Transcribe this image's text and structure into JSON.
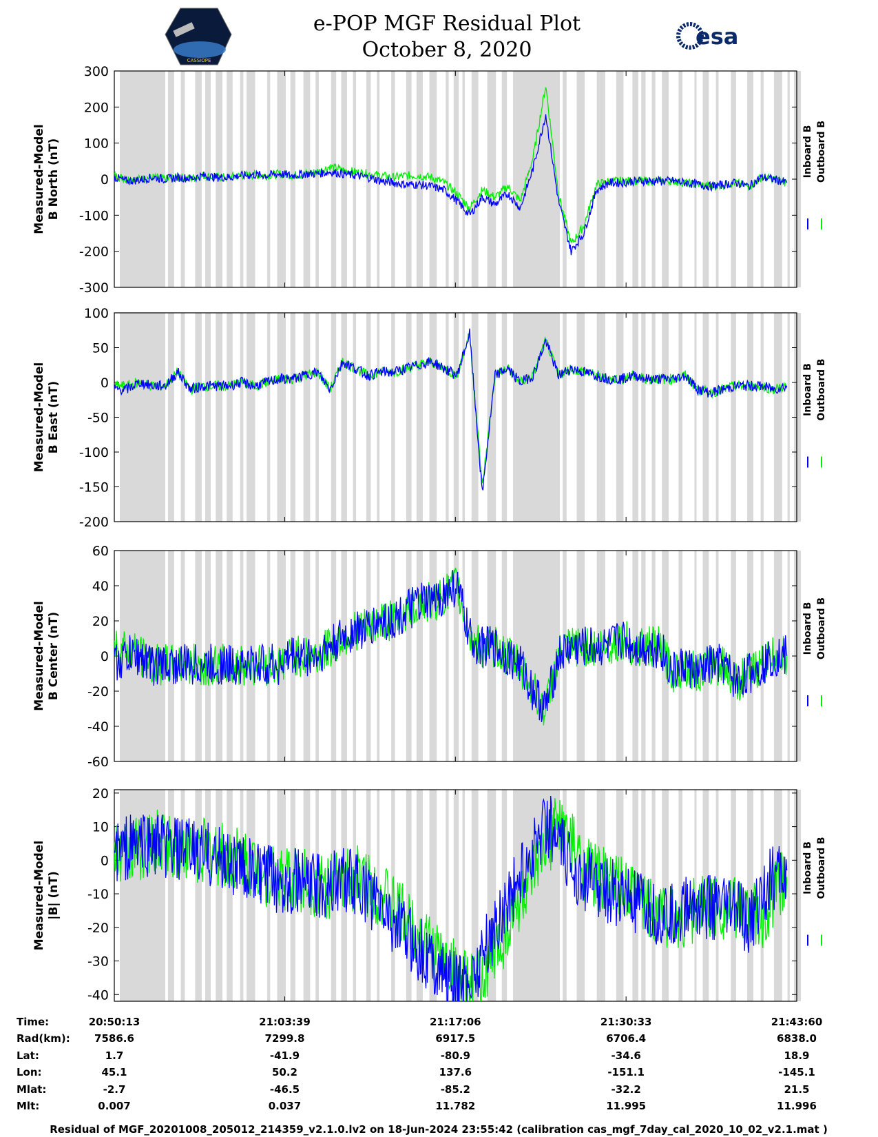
{
  "header": {
    "title_line1": "e-POP MGF Residual Plot",
    "title_line2": "October 8, 2020",
    "left_logo": "cassiope-mission-logo",
    "left_logo_text": "CASSIOPE",
    "right_logo": "esa-logo",
    "right_logo_text": "esa"
  },
  "colors": {
    "inboard": "#0000ff",
    "outboard": "#00ee00",
    "gap_shade": "#d9d9d9"
  },
  "chart_data": [
    {
      "type": "line",
      "ylabel_line1": "Measured-Model",
      "ylabel_line2": "B North (nT)",
      "ylim": [
        -300,
        300
      ],
      "yticks": [
        "300",
        "200",
        "100",
        "0",
        "-100",
        "-200",
        "-300"
      ],
      "series": [
        {
          "name": "Inboard B",
          "x_min": [
            0,
            1,
            2,
            3,
            4,
            5,
            6,
            7,
            8,
            9,
            10,
            11,
            12,
            13,
            14,
            15,
            16,
            17,
            18,
            19,
            20,
            21,
            22,
            23,
            24,
            25,
            26,
            27,
            28,
            29,
            30,
            31,
            32,
            33,
            34,
            35,
            36,
            37,
            38,
            39,
            40,
            41,
            42,
            43,
            44,
            45,
            46,
            47,
            48,
            49,
            50,
            51,
            52,
            53
          ],
          "values": [
            5,
            -5,
            -2,
            5,
            0,
            5,
            2,
            10,
            5,
            5,
            10,
            12,
            10,
            15,
            10,
            15,
            15,
            20,
            15,
            10,
            5,
            -5,
            -10,
            -15,
            -15,
            -20,
            -30,
            -60,
            -100,
            -50,
            -70,
            -40,
            -80,
            30,
            180,
            -60,
            -200,
            -150,
            -30,
            -10,
            -10,
            -5,
            -5,
            -5,
            -5,
            -10,
            -15,
            -20,
            -15,
            -10,
            -20,
            5,
            0,
            -10
          ]
        },
        {
          "name": "Outboard B",
          "x_min": [
            0,
            1,
            2,
            3,
            4,
            5,
            6,
            7,
            8,
            9,
            10,
            11,
            12,
            13,
            14,
            15,
            16,
            17,
            18,
            19,
            20,
            21,
            22,
            23,
            24,
            25,
            26,
            27,
            28,
            29,
            30,
            31,
            32,
            33,
            34,
            35,
            36,
            37,
            38,
            39,
            40,
            41,
            42,
            43,
            44,
            45,
            46,
            47,
            48,
            49,
            50,
            51,
            52,
            53
          ],
          "values": [
            10,
            0,
            0,
            5,
            0,
            5,
            2,
            10,
            5,
            5,
            10,
            12,
            10,
            15,
            10,
            15,
            20,
            35,
            25,
            20,
            15,
            10,
            5,
            10,
            10,
            5,
            -10,
            -40,
            -80,
            -30,
            -50,
            -20,
            -60,
            60,
            260,
            -40,
            -180,
            -130,
            -15,
            -5,
            -5,
            -5,
            -5,
            -5,
            -5,
            -10,
            -15,
            -20,
            -15,
            -10,
            -20,
            5,
            0,
            -10
          ]
        }
      ]
    },
    {
      "type": "line",
      "ylabel_line1": "Measured-Model",
      "ylabel_line2": "B East (nT)",
      "ylim": [
        -200,
        100
      ],
      "yticks": [
        "100",
        "50",
        "0",
        "-50",
        "-100",
        "-150",
        "-200"
      ],
      "series": [
        {
          "name": "Inboard B",
          "x_min": [
            0,
            1,
            2,
            3,
            4,
            5,
            6,
            7,
            8,
            9,
            10,
            11,
            12,
            13,
            14,
            15,
            16,
            17,
            18,
            19,
            20,
            21,
            22,
            23,
            24,
            25,
            26,
            27,
            28,
            29,
            30,
            31,
            32,
            33,
            34,
            35,
            36,
            37,
            38,
            39,
            40,
            41,
            42,
            43,
            44,
            45,
            46,
            47,
            48,
            49,
            50,
            51,
            52,
            53
          ],
          "values": [
            -10,
            -10,
            0,
            -5,
            -5,
            15,
            -10,
            -5,
            -5,
            -5,
            0,
            -5,
            0,
            5,
            5,
            10,
            15,
            -10,
            30,
            20,
            10,
            15,
            15,
            20,
            25,
            30,
            20,
            10,
            70,
            -160,
            10,
            20,
            0,
            10,
            60,
            10,
            20,
            15,
            10,
            5,
            5,
            10,
            5,
            5,
            5,
            10,
            -10,
            -15,
            -10,
            -5,
            -5,
            -5,
            -10,
            -5
          ]
        },
        {
          "name": "Outboard B",
          "x_min": [
            0,
            1,
            2,
            3,
            4,
            5,
            6,
            7,
            8,
            9,
            10,
            11,
            12,
            13,
            14,
            15,
            16,
            17,
            18,
            19,
            20,
            21,
            22,
            23,
            24,
            25,
            26,
            27,
            28,
            29,
            30,
            31,
            32,
            33,
            34,
            35,
            36,
            37,
            38,
            39,
            40,
            41,
            42,
            43,
            44,
            45,
            46,
            47,
            48,
            49,
            50,
            51,
            52,
            53
          ],
          "values": [
            -5,
            -5,
            0,
            -5,
            -5,
            15,
            -10,
            -5,
            -5,
            -5,
            0,
            -5,
            0,
            5,
            5,
            10,
            15,
            -10,
            30,
            20,
            10,
            15,
            15,
            20,
            25,
            30,
            20,
            10,
            70,
            -150,
            10,
            20,
            0,
            10,
            60,
            10,
            20,
            15,
            10,
            5,
            5,
            10,
            5,
            5,
            5,
            10,
            -10,
            -15,
            -10,
            -5,
            -5,
            -5,
            -10,
            -5
          ]
        }
      ]
    },
    {
      "type": "line",
      "ylabel_line1": "Measured-Model",
      "ylabel_line2": "B Center (nT)",
      "ylim": [
        -60,
        60
      ],
      "yticks": [
        "60",
        "40",
        "20",
        "0",
        "-20",
        "-40",
        "-60"
      ],
      "series": [
        {
          "name": "Inboard B",
          "x_min": [
            0,
            1,
            2,
            3,
            4,
            5,
            6,
            7,
            8,
            9,
            10,
            11,
            12,
            13,
            14,
            15,
            16,
            17,
            18,
            19,
            20,
            21,
            22,
            23,
            24,
            25,
            26,
            27,
            28,
            29,
            30,
            31,
            32,
            33,
            34,
            35,
            36,
            37,
            38,
            39,
            40,
            41,
            42,
            43,
            44,
            45,
            46,
            47,
            48,
            49,
            50,
            51,
            52,
            53
          ],
          "values": [
            -5,
            0,
            0,
            -5,
            -5,
            -5,
            -5,
            -5,
            -5,
            -5,
            -5,
            -5,
            -5,
            -5,
            0,
            0,
            0,
            5,
            10,
            15,
            15,
            20,
            20,
            25,
            30,
            30,
            35,
            40,
            10,
            5,
            5,
            0,
            -5,
            -20,
            -30,
            0,
            5,
            5,
            5,
            5,
            10,
            5,
            5,
            5,
            -10,
            -5,
            -10,
            -5,
            -5,
            -15,
            -10,
            -5,
            0,
            0
          ]
        },
        {
          "name": "Outboard B",
          "x_min": [
            0,
            1,
            2,
            3,
            4,
            5,
            6,
            7,
            8,
            9,
            10,
            11,
            12,
            13,
            14,
            15,
            16,
            17,
            18,
            19,
            20,
            21,
            22,
            23,
            24,
            25,
            26,
            27,
            28,
            29,
            30,
            31,
            32,
            33,
            34,
            35,
            36,
            37,
            38,
            39,
            40,
            41,
            42,
            43,
            44,
            45,
            46,
            47,
            48,
            49,
            50,
            51,
            52,
            53
          ],
          "values": [
            5,
            5,
            0,
            -5,
            -5,
            -5,
            -5,
            -5,
            -5,
            -5,
            -5,
            -5,
            -5,
            -5,
            0,
            0,
            0,
            5,
            10,
            15,
            15,
            20,
            20,
            25,
            30,
            30,
            35,
            40,
            10,
            5,
            5,
            0,
            -5,
            -20,
            -30,
            0,
            5,
            5,
            5,
            5,
            10,
            5,
            5,
            5,
            -10,
            -5,
            -10,
            -5,
            -5,
            -15,
            -10,
            -5,
            0,
            0
          ]
        }
      ]
    },
    {
      "type": "line",
      "ylabel_line1": "Measured-Model",
      "ylabel_line2": "|B| (nT)",
      "ylim": [
        -42,
        21
      ],
      "yticks": [
        "20",
        "10",
        "0",
        "-10",
        "-20",
        "-30",
        "-40"
      ],
      "series": [
        {
          "name": "Inboard B",
          "x_min": [
            0,
            1,
            2,
            3,
            4,
            5,
            6,
            7,
            8,
            9,
            10,
            11,
            12,
            13,
            14,
            15,
            16,
            17,
            18,
            19,
            20,
            21,
            22,
            23,
            24,
            25,
            26,
            27,
            28,
            29,
            30,
            31,
            32,
            33,
            34,
            35,
            36,
            37,
            38,
            39,
            40,
            41,
            42,
            43,
            44,
            45,
            46,
            47,
            48,
            49,
            50,
            51,
            52,
            53
          ],
          "values": [
            2,
            4,
            5,
            5,
            4,
            3,
            3,
            2,
            1,
            0,
            -2,
            -4,
            -5,
            -6,
            -6,
            -7,
            -8,
            -7,
            -5,
            -7,
            -10,
            -14,
            -18,
            -22,
            -26,
            -30,
            -34,
            -38,
            -36,
            -28,
            -20,
            -12,
            -5,
            3,
            12,
            5,
            -2,
            -5,
            -7,
            -9,
            -11,
            -13,
            -15,
            -17,
            -17,
            -14,
            -13,
            -14,
            -15,
            -14,
            -20,
            -10,
            -5,
            -3
          ]
        },
        {
          "name": "Outboard B",
          "x_min": [
            0,
            1,
            2,
            3,
            4,
            5,
            6,
            7,
            8,
            9,
            10,
            11,
            12,
            13,
            14,
            15,
            16,
            17,
            18,
            19,
            20,
            21,
            22,
            23,
            24,
            25,
            26,
            27,
            28,
            29,
            30,
            31,
            32,
            33,
            34,
            35,
            36,
            37,
            38,
            39,
            40,
            41,
            42,
            43,
            44,
            45,
            46,
            47,
            48,
            49,
            50,
            51,
            52,
            53
          ],
          "values": [
            2,
            2,
            4,
            5,
            5,
            4,
            3,
            3,
            2,
            1,
            0,
            -2,
            -4,
            -5,
            -6,
            -6,
            -7,
            -8,
            -7,
            -5,
            -7,
            -10,
            -14,
            -18,
            -22,
            -26,
            -30,
            -34,
            -38,
            -36,
            -28,
            -20,
            -12,
            -5,
            3,
            12,
            5,
            -2,
            -5,
            -7,
            -9,
            -11,
            -13,
            -15,
            -17,
            -17,
            -14,
            -13,
            -14,
            -15,
            -14,
            -20,
            -10,
            -5
          ]
        }
      ]
    }
  ],
  "legend": {
    "inboard": "Inboard B",
    "outboard": "Outboard B"
  },
  "x_axis": {
    "range_min": [
      0,
      53.78
    ],
    "tick_positions_min": [
      0,
      13.43,
      26.88,
      40.33,
      53.78
    ]
  },
  "info_table": {
    "labels": [
      "Time:",
      "Rad(km):",
      "Lat:",
      "Lon:",
      "Mlat:",
      "Mlt:"
    ],
    "columns": [
      [
        "20:50:13",
        "7586.6",
        "1.7",
        "45.1",
        "-2.7",
        "0.007"
      ],
      [
        "21:03:39",
        "7299.8",
        "-41.9",
        "50.2",
        "-46.5",
        "0.037"
      ],
      [
        "21:17:06",
        "6917.5",
        "-80.9",
        "137.6",
        "-85.2",
        "11.782"
      ],
      [
        "21:30:33",
        "6706.4",
        "-34.6",
        "-151.1",
        "-32.2",
        "11.995"
      ],
      [
        "21:43:60",
        "6838.0",
        "18.9",
        "-145.1",
        "21.5",
        "11.996"
      ]
    ]
  },
  "footer": "Residual of MGF_20201008_205012_214359_v2.1.0.lv2 on 18-Jun-2024 23:55:42 (calibration cas_mgf_7day_cal_2020_10_02_v2.1.mat )"
}
